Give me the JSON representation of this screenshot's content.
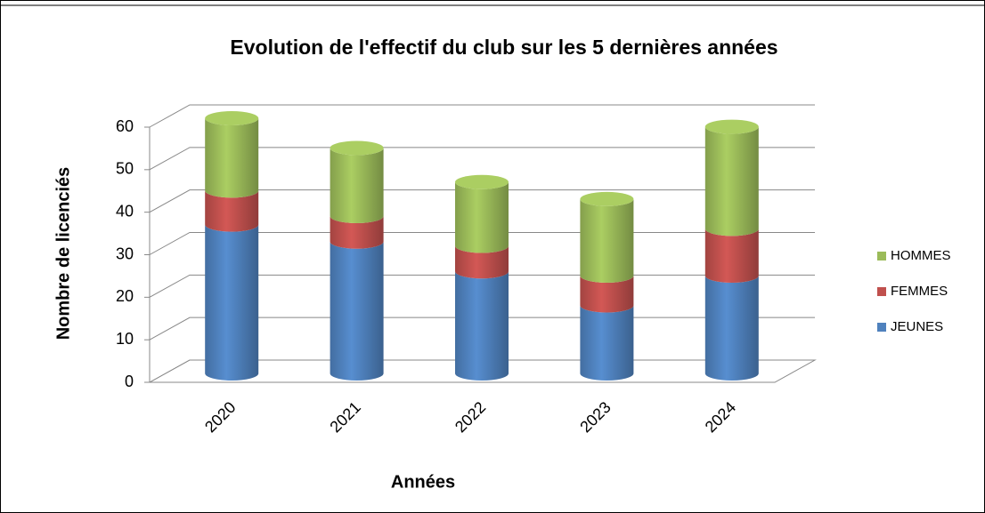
{
  "chart_data": {
    "type": "bar3d_stacked",
    "title": "Evolution de l'effectif du club sur les 5 dernières années",
    "x_label": "Années",
    "y_label": "Nombre de licenciés",
    "categories": [
      "2020",
      "2021",
      "2022",
      "2023",
      "2024"
    ],
    "series": [
      {
        "name": "JEUNES",
        "color": "#4f81bd",
        "values": [
          35,
          31,
          24,
          16,
          23
        ]
      },
      {
        "name": "FEMMES",
        "color": "#c0504d",
        "values": [
          8,
          6,
          6,
          7,
          11
        ]
      },
      {
        "name": "HOMMES",
        "color": "#9bbb59",
        "values": [
          17,
          16,
          15,
          18,
          24
        ]
      }
    ],
    "ylim": [
      0,
      60
    ],
    "yticks": [
      0,
      10,
      20,
      30,
      40,
      50,
      60
    ],
    "grid": true,
    "legend": "right"
  }
}
